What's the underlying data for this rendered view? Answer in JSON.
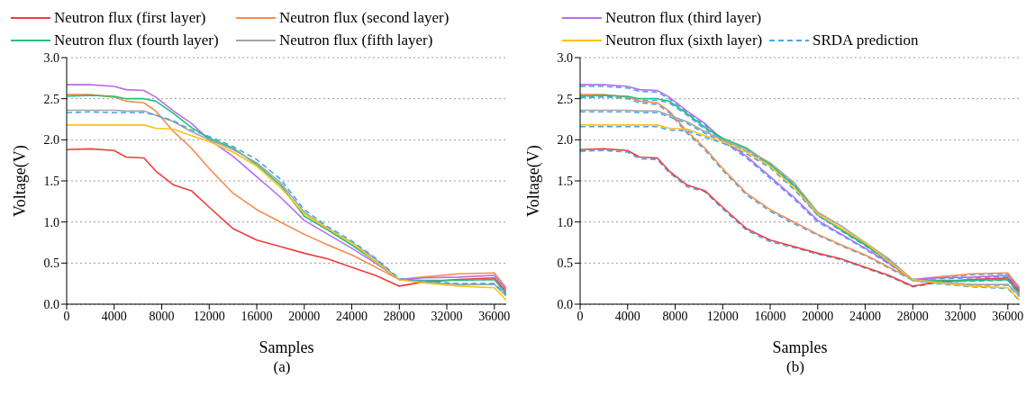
{
  "chart_data": [
    {
      "type": "line",
      "title": "(a)",
      "xlabel": "Samples",
      "ylabel": "Voltage(V)",
      "xlim": [
        0,
        37000
      ],
      "xticks": [
        0,
        4000,
        8000,
        12000,
        16000,
        20000,
        24000,
        28000,
        32000,
        36000
      ],
      "ylim": [
        0,
        3
      ],
      "yticks": [
        {
          "value": 0,
          "label": "0.0"
        },
        {
          "value": 0.5,
          "label": "0.5"
        },
        {
          "value": 1,
          "label": "1.0"
        },
        {
          "value": 1.5,
          "label": "1.5"
        },
        {
          "value": 2,
          "label": "2.0"
        },
        {
          "value": 2.5,
          "label": "2.5"
        },
        {
          "value": 3,
          "label": "3.0"
        }
      ],
      "grid": "y",
      "legend": "top",
      "x": [
        0,
        2000,
        4000,
        5000,
        6500,
        7500,
        9000,
        10500,
        12000,
        14000,
        16000,
        18000,
        20000,
        22000,
        24000,
        26000,
        28000,
        30000,
        33000,
        36000,
        37000
      ],
      "series": [
        {
          "name": "Neutron flux (first layer)",
          "color": "#f03c3c",
          "line_style": "solid",
          "values": [
            1.88,
            1.89,
            1.87,
            1.79,
            1.78,
            1.62,
            1.45,
            1.38,
            1.18,
            0.92,
            0.78,
            0.7,
            0.62,
            0.55,
            0.45,
            0.35,
            0.22,
            0.27,
            0.3,
            0.32,
            0.15
          ]
        },
        {
          "name": "Neutron flux (second layer)",
          "color": "#f58c4c",
          "line_style": "solid",
          "values": [
            2.55,
            2.55,
            2.52,
            2.47,
            2.45,
            2.35,
            2.1,
            1.9,
            1.65,
            1.35,
            1.15,
            1.0,
            0.85,
            0.72,
            0.6,
            0.45,
            0.3,
            0.33,
            0.37,
            0.38,
            0.2
          ]
        },
        {
          "name": "Neutron flux (third layer)",
          "color": "#b96cf0",
          "line_style": "solid",
          "values": [
            2.67,
            2.67,
            2.65,
            2.61,
            2.6,
            2.52,
            2.35,
            2.2,
            2.0,
            1.8,
            1.55,
            1.3,
            1.02,
            0.85,
            0.68,
            0.5,
            0.3,
            0.32,
            0.33,
            0.35,
            0.18
          ]
        },
        {
          "name": "Neutron flux (fourth layer)",
          "color": "#21c07a",
          "line_style": "solid",
          "values": [
            2.53,
            2.54,
            2.53,
            2.5,
            2.5,
            2.47,
            2.32,
            2.15,
            2.02,
            1.9,
            1.7,
            1.45,
            1.07,
            0.9,
            0.72,
            0.52,
            0.3,
            0.29,
            0.29,
            0.3,
            0.12
          ]
        },
        {
          "name": "Neutron flux (fifth layer)",
          "color": "#a5a5a5",
          "line_style": "solid",
          "values": [
            2.36,
            2.36,
            2.36,
            2.35,
            2.35,
            2.3,
            2.22,
            2.1,
            2.0,
            1.88,
            1.72,
            1.48,
            1.12,
            0.92,
            0.75,
            0.55,
            0.3,
            0.27,
            0.24,
            0.24,
            0.1
          ]
        },
        {
          "name": "Neutron flux (sixth layer)",
          "color": "#f8c21c",
          "line_style": "solid",
          "values": [
            2.18,
            2.18,
            2.18,
            2.18,
            2.18,
            2.14,
            2.13,
            2.05,
            1.98,
            1.85,
            1.68,
            1.42,
            1.1,
            0.92,
            0.75,
            0.52,
            0.3,
            0.26,
            0.22,
            0.2,
            0.05
          ]
        },
        {
          "name": "SRDA prediction",
          "color": "#4aa3f0",
          "line_style": "dashed",
          "values": [
            2.33,
            2.34,
            2.33,
            2.33,
            2.33,
            2.3,
            2.23,
            2.12,
            2.04,
            1.92,
            1.76,
            1.52,
            1.15,
            0.94,
            0.77,
            0.56,
            0.31,
            0.28,
            0.25,
            0.25,
            0.11
          ]
        }
      ]
    },
    {
      "type": "line",
      "title": "(b)",
      "xlabel": "Samples",
      "ylabel": "Voltage(V)",
      "xlim": [
        0,
        37000
      ],
      "xticks": [
        0,
        4000,
        8000,
        12000,
        16000,
        20000,
        24000,
        28000,
        32000,
        36000
      ],
      "ylim": [
        0,
        3
      ],
      "yticks": [
        {
          "value": 0,
          "label": "0.0"
        },
        {
          "value": 0.5,
          "label": "0.5"
        },
        {
          "value": 1,
          "label": "1.0"
        },
        {
          "value": 1.5,
          "label": "1.5"
        },
        {
          "value": 2,
          "label": "2.0"
        },
        {
          "value": 2.5,
          "label": "2.5"
        },
        {
          "value": 3,
          "label": "3.0"
        }
      ],
      "grid": "y",
      "x": [
        0,
        2000,
        4000,
        5000,
        6500,
        7500,
        9000,
        10500,
        12000,
        14000,
        16000,
        18000,
        20000,
        22000,
        24000,
        26000,
        28000,
        30000,
        33000,
        36000,
        37000
      ],
      "series": [
        {
          "color": "#4aa3f0",
          "line_style": "dashed",
          "values": [
            1.86,
            1.87,
            1.85,
            1.77,
            1.76,
            1.6,
            1.43,
            1.37,
            1.16,
            0.9,
            0.76,
            0.69,
            0.61,
            0.54,
            0.44,
            0.34,
            0.21,
            0.26,
            0.29,
            0.31,
            0.14
          ]
        },
        {
          "color": "#4aa3f0",
          "line_style": "dashed",
          "values": [
            2.53,
            2.53,
            2.5,
            2.45,
            2.43,
            2.33,
            2.08,
            1.88,
            1.63,
            1.33,
            1.13,
            0.98,
            0.84,
            0.71,
            0.59,
            0.44,
            0.29,
            0.32,
            0.36,
            0.37,
            0.19
          ]
        },
        {
          "color": "#4aa3f0",
          "line_style": "dashed",
          "values": [
            2.65,
            2.65,
            2.63,
            2.59,
            2.58,
            2.5,
            2.33,
            2.18,
            1.98,
            1.78,
            1.53,
            1.28,
            1.0,
            0.84,
            0.67,
            0.49,
            0.29,
            0.31,
            0.32,
            0.34,
            0.17
          ]
        },
        {
          "color": "#4aa3f0",
          "line_style": "dashed",
          "values": [
            2.51,
            2.52,
            2.51,
            2.48,
            2.48,
            2.45,
            2.3,
            2.13,
            2.0,
            1.88,
            1.68,
            1.43,
            1.08,
            0.89,
            0.71,
            0.51,
            0.29,
            0.28,
            0.28,
            0.29,
            0.11
          ]
        },
        {
          "color": "#4aa3f0",
          "line_style": "dashed",
          "values": [
            2.34,
            2.34,
            2.34,
            2.33,
            2.33,
            2.28,
            2.2,
            2.08,
            1.98,
            1.86,
            1.7,
            1.46,
            1.1,
            0.91,
            0.74,
            0.54,
            0.29,
            0.26,
            0.23,
            0.23,
            0.09
          ]
        },
        {
          "color": "#4aa3f0",
          "line_style": "dashed",
          "values": [
            2.16,
            2.16,
            2.16,
            2.16,
            2.16,
            2.12,
            2.11,
            2.03,
            1.96,
            1.83,
            1.66,
            1.4,
            1.08,
            0.91,
            0.74,
            0.51,
            0.29,
            0.25,
            0.21,
            0.19,
            0.04
          ]
        },
        {
          "color": "#f03c3c",
          "line_style": "solid",
          "values": [
            1.88,
            1.89,
            1.87,
            1.79,
            1.78,
            1.62,
            1.45,
            1.38,
            1.18,
            0.92,
            0.78,
            0.7,
            0.62,
            0.55,
            0.45,
            0.35,
            0.22,
            0.27,
            0.3,
            0.32,
            0.15
          ]
        },
        {
          "color": "#f58c4c",
          "line_style": "solid",
          "values": [
            2.55,
            2.55,
            2.52,
            2.47,
            2.45,
            2.35,
            2.1,
            1.9,
            1.65,
            1.35,
            1.15,
            1.0,
            0.85,
            0.72,
            0.6,
            0.45,
            0.3,
            0.33,
            0.37,
            0.38,
            0.2
          ]
        },
        {
          "color": "#b96cf0",
          "line_style": "solid",
          "values": [
            2.67,
            2.67,
            2.65,
            2.61,
            2.6,
            2.52,
            2.35,
            2.2,
            2.0,
            1.8,
            1.55,
            1.3,
            1.02,
            0.85,
            0.68,
            0.5,
            0.3,
            0.32,
            0.33,
            0.35,
            0.18
          ]
        },
        {
          "color": "#21c07a",
          "line_style": "solid",
          "values": [
            2.53,
            2.54,
            2.53,
            2.5,
            2.5,
            2.47,
            2.32,
            2.15,
            2.02,
            1.9,
            1.7,
            1.45,
            1.1,
            0.9,
            0.72,
            0.52,
            0.3,
            0.29,
            0.29,
            0.3,
            0.12
          ]
        },
        {
          "color": "#a5a5a5",
          "line_style": "solid",
          "values": [
            2.36,
            2.36,
            2.36,
            2.35,
            2.35,
            2.3,
            2.22,
            2.1,
            2.0,
            1.88,
            1.72,
            1.48,
            1.12,
            0.95,
            0.75,
            0.55,
            0.3,
            0.27,
            0.24,
            0.24,
            0.1
          ]
        },
        {
          "color": "#f8c21c",
          "line_style": "solid",
          "values": [
            2.18,
            2.18,
            2.18,
            2.18,
            2.18,
            2.14,
            2.13,
            2.05,
            1.98,
            1.85,
            1.68,
            1.42,
            1.1,
            0.92,
            0.75,
            0.52,
            0.3,
            0.26,
            0.22,
            0.2,
            0.05
          ]
        }
      ]
    }
  ]
}
